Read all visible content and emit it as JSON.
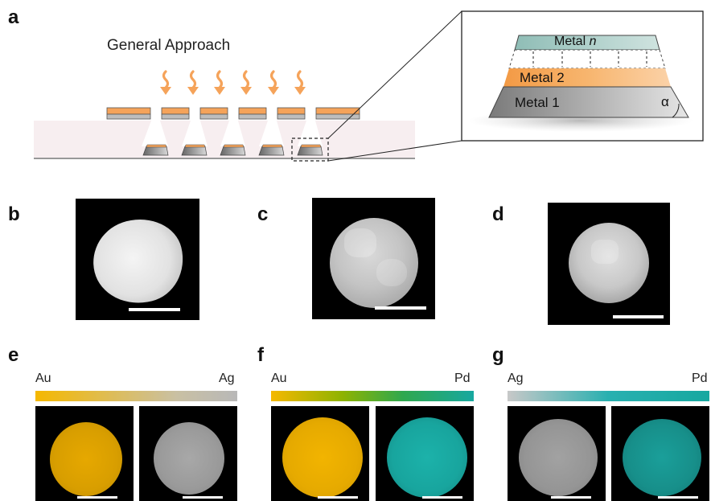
{
  "panels": {
    "a": "a",
    "b": "b",
    "c": "c",
    "d": "d",
    "e": "e",
    "f": "f",
    "g": "g"
  },
  "panel_a": {
    "title": "General Approach",
    "layers": {
      "metal_n_prefix": "Metal ",
      "metal_n_italic": "n",
      "metal_2": "Metal 2",
      "metal_1": "Metal 1",
      "angle": "α"
    },
    "colors": {
      "orange": "#f5a35a",
      "metal_n": "#9ec7c1",
      "metal_1": "#8c8c8c",
      "substrate": "#f7eef0"
    }
  },
  "panel_e": {
    "left": "Au",
    "right": "Ag"
  },
  "panel_f": {
    "left": "Au",
    "right": "Pd"
  },
  "panel_g": {
    "left": "Ag",
    "right": "Pd"
  },
  "colors": {
    "au": "#f5b800",
    "ag": "#b8b8b8",
    "pd": "#17a8a0"
  }
}
